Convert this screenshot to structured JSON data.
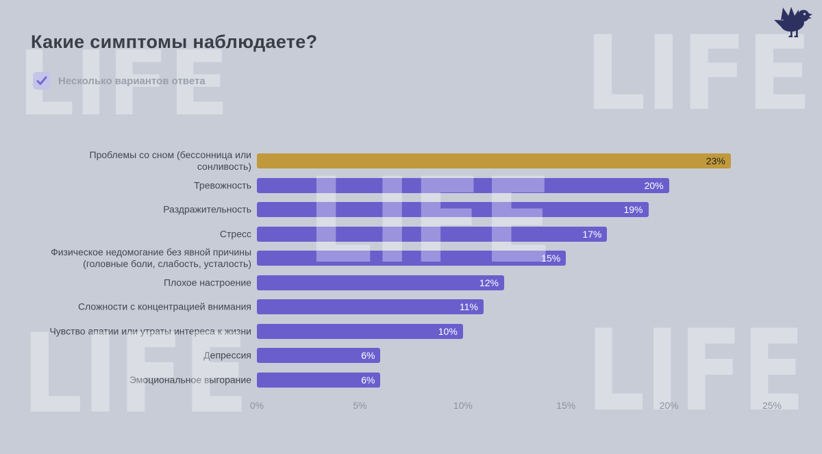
{
  "page": {
    "title": "Какие симптомы наблюдаете?",
    "note": "Несколько вариантов ответа"
  },
  "watermark": {
    "text": "LIFE"
  },
  "colors": {
    "background": "#c8ccd7",
    "bar": "#6a5ecd",
    "bar_highlight": "#c0993c",
    "title_text": "#3b3e46",
    "label_text": "#42464f",
    "axis_text": "#8d929d",
    "note_text": "#9aa0ab",
    "value_text_on_bar": "#ffffff",
    "value_text_on_highlight": "#1e1e20",
    "logo": "#2d3160",
    "checkbox_bg": "#c4c4e8",
    "checkbox_check": "#7569d2",
    "watermark": "rgba(255,255,255,0.33)"
  },
  "chart_data": {
    "type": "bar",
    "orientation": "horizontal",
    "title": "Какие симптомы наблюдаете?",
    "note": "Несколько вариантов ответа",
    "categories": [
      "Проблемы со сном (бессонница или\nсонливость)",
      "Тревожность",
      "Раздражительность",
      "Стресс",
      "Физическое недомогание без явной причины\n(головные боли, слабость, усталость)",
      "Плохое настроение",
      "Сложности с концентрацией внимания",
      "Чувство апатии или утраты интереса к жизни",
      "Депрессия",
      "Эмоциональное выгорание"
    ],
    "values": [
      23,
      20,
      19,
      17,
      15,
      12,
      11,
      10,
      6,
      6
    ],
    "value_labels": [
      "23%",
      "20%",
      "19%",
      "17%",
      "15%",
      "12%",
      "11%",
      "10%",
      "6%",
      "6%"
    ],
    "highlight_index": 0,
    "x_ticks": [
      0,
      5,
      10,
      15,
      20,
      25
    ],
    "x_tick_labels": [
      "0%",
      "5%",
      "10%",
      "15%",
      "20%",
      "25%"
    ],
    "xlim": [
      0,
      25
    ],
    "grid": false,
    "legend": false
  }
}
